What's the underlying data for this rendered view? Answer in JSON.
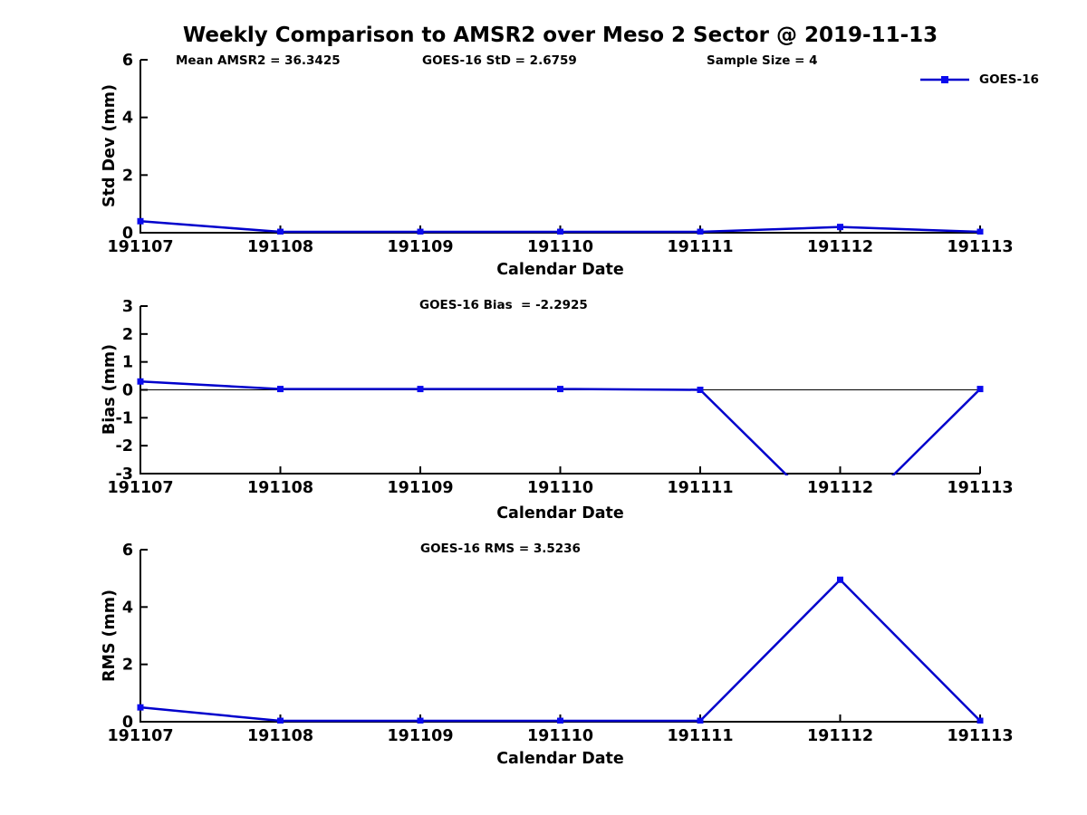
{
  "title": "Weekly Comparison to AMSR2 over Meso 2 Sector @ 2019-11-13",
  "legend": {
    "label": "GOES-16"
  },
  "colors": {
    "line": "#0000cc",
    "marker": "#0a0aee",
    "axis": "#000000",
    "zero_line": "#000000",
    "background": "#ffffff",
    "text": "#000000"
  },
  "chart_data": [
    {
      "type": "line",
      "ylabel": "Std Dev (mm)",
      "xlabel": "Calendar Date",
      "categories": [
        "191107",
        "191108",
        "191109",
        "191110",
        "191111",
        "191112",
        "191113"
      ],
      "yticks": [
        0,
        2,
        4,
        6
      ],
      "ylim": [
        0,
        6
      ],
      "grid": false,
      "zero_line": false,
      "legend_position": "top-right",
      "series": [
        {
          "name": "GOES-16",
          "values": [
            0.4,
            0.03,
            0.03,
            0.03,
            0.03,
            0.2,
            0.03
          ]
        }
      ],
      "annotations": [
        "Mean AMSR2 = 36.3425",
        "GOES-16 StD = 2.6759",
        "Sample Size = 4"
      ]
    },
    {
      "type": "line",
      "ylabel": "Bias (mm)",
      "xlabel": "Calendar Date",
      "categories": [
        "191107",
        "191108",
        "191109",
        "191110",
        "191111",
        "191112",
        "191113"
      ],
      "yticks": [
        -3,
        -2,
        -1,
        0,
        1,
        2,
        3
      ],
      "ylim": [
        -3,
        3
      ],
      "grid": false,
      "zero_line": true,
      "series": [
        {
          "name": "GOES-16",
          "values": [
            0.3,
            0.03,
            0.03,
            0.03,
            0.0,
            -4.94,
            0.03
          ]
        }
      ],
      "annotations": [
        "GOES-16 Bias  = -2.2925"
      ]
    },
    {
      "type": "line",
      "ylabel": "RMS (mm)",
      "xlabel": "Calendar Date",
      "categories": [
        "191107",
        "191108",
        "191109",
        "191110",
        "191111",
        "191112",
        "191113"
      ],
      "yticks": [
        0,
        2,
        4,
        6
      ],
      "ylim": [
        0,
        6
      ],
      "grid": false,
      "zero_line": false,
      "series": [
        {
          "name": "GOES-16",
          "values": [
            0.5,
            0.03,
            0.03,
            0.03,
            0.03,
            4.95,
            0.03
          ]
        }
      ],
      "annotations": [
        "GOES-16 RMS = 3.5236"
      ]
    }
  ]
}
